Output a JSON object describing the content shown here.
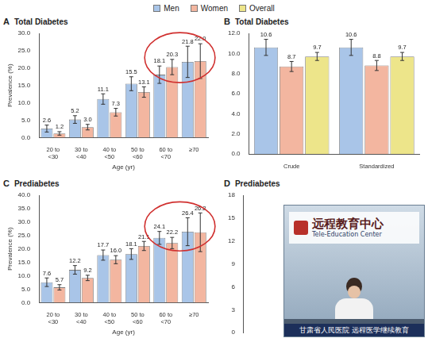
{
  "chart_data": [
    {
      "panel_label": "A",
      "type": "bar",
      "title": "Total Diabetes",
      "x_label": "Age (yr)",
      "y_label": "Prevalence (%)",
      "categories": [
        "20 to <30",
        "30 to <40",
        "40 to <50",
        "50 to <60",
        "60 to <70",
        "≥70"
      ],
      "series": [
        {
          "name": "Men",
          "color": "#a9c5e8",
          "values": [
            2.6,
            5.2,
            11.1,
            15.5,
            18.1,
            21.8
          ],
          "errors": [
            1.0,
            1.1,
            1.5,
            2.0,
            2.5,
            4.5
          ]
        },
        {
          "name": "Women",
          "color": "#f3b6a0",
          "values": [
            1.2,
            3.0,
            7.3,
            13.1,
            20.3,
            22.0
          ],
          "value_labels": [
            "1.2",
            "3.0",
            "7.3",
            "13.1",
            "20.3",
            "22.0"
          ],
          "errors": [
            0.5,
            0.8,
            1.1,
            1.5,
            2.2,
            5.0
          ]
        }
      ],
      "ylim": [
        0,
        30
      ],
      "yticks": [
        {
          "value": 0,
          "label": "0.0"
        },
        {
          "value": 5,
          "label": "5.0"
        },
        {
          "value": 10,
          "label": "10.0"
        },
        {
          "value": 15,
          "label": "15.0"
        },
        {
          "value": 20,
          "label": "20.0"
        },
        {
          "value": 25,
          "label": "25.0"
        },
        {
          "value": 30,
          "label": "30.0"
        }
      ],
      "grid": false,
      "data_labels": true
    },
    {
      "panel_label": "B",
      "type": "bar",
      "title": "Total Diabetes",
      "categories": [
        "Crude",
        "Standardized"
      ],
      "series": [
        {
          "name": "Men",
          "color": "#a9c5e8",
          "values": [
            10.6,
            10.6
          ],
          "errors": [
            0.8,
            0.8
          ]
        },
        {
          "name": "Women",
          "color": "#f3b6a0",
          "values": [
            8.7,
            8.8
          ],
          "errors": [
            0.5,
            0.5
          ]
        },
        {
          "name": "Overall",
          "color": "#ede58a",
          "values": [
            9.7,
            9.7
          ],
          "errors": [
            0.4,
            0.4
          ]
        }
      ],
      "ylim": [
        0,
        12
      ],
      "yticks": [
        {
          "value": 0,
          "label": "0.0"
        },
        {
          "value": 2,
          "label": "2.0"
        },
        {
          "value": 4,
          "label": "4.0"
        },
        {
          "value": 6,
          "label": "6.0"
        },
        {
          "value": 8,
          "label": "8.0"
        },
        {
          "value": 10,
          "label": "10.0"
        },
        {
          "value": 12,
          "label": "12.0"
        }
      ],
      "grid": false,
      "data_labels": true,
      "legend": "top"
    },
    {
      "panel_label": "C",
      "type": "bar",
      "title": "Prediabetes",
      "x_label": "Age (yr)",
      "y_label": "Prevalence (%)",
      "categories": [
        "20 to <30",
        "30 to <40",
        "40 to <50",
        "50 to <60",
        "60 to <70",
        "≥70"
      ],
      "series": [
        {
          "name": "Men",
          "color": "#a9c5e8",
          "values": [
            7.6,
            12.2,
            17.7,
            18.1,
            24.1,
            26.4
          ],
          "errors": [
            1.6,
            1.6,
            1.9,
            2.0,
            2.4,
            5.2
          ]
        },
        {
          "name": "Women",
          "color": "#f3b6a0",
          "values": [
            5.7,
            9.2,
            16.0,
            21.1,
            22.2,
            26.2
          ],
          "value_labels": [
            "5.7",
            "9.2",
            "16.0",
            "21.1",
            "22.2",
            "26.2"
          ],
          "errors": [
            1.0,
            1.0,
            1.5,
            1.7,
            2.1,
            7.2
          ]
        }
      ],
      "ylim": [
        0,
        40
      ],
      "yticks": [
        {
          "value": 0,
          "label": "0.0"
        },
        {
          "value": 5,
          "label": "5.0"
        },
        {
          "value": 10,
          "label": "10.0"
        },
        {
          "value": 15,
          "label": "15.0"
        },
        {
          "value": 20,
          "label": "20.0"
        },
        {
          "value": 25,
          "label": "25.0"
        },
        {
          "value": 30,
          "label": "30.0"
        },
        {
          "value": 35,
          "label": "35.0"
        },
        {
          "value": 40,
          "label": "40.0"
        }
      ],
      "grid": false,
      "data_labels": true
    },
    {
      "panel_label": "D",
      "type": "bar",
      "title": "Prediabetes",
      "series": [],
      "ylim": [
        0,
        18
      ],
      "yticks": [
        0,
        3,
        6,
        9,
        12,
        15,
        18
      ],
      "grid": false
    }
  ],
  "screen": {
    "title": "远程教育中心",
    "subtitle": "Tele-Education Center",
    "caption": "甘肃省人民医院  远程医学继续教育"
  }
}
